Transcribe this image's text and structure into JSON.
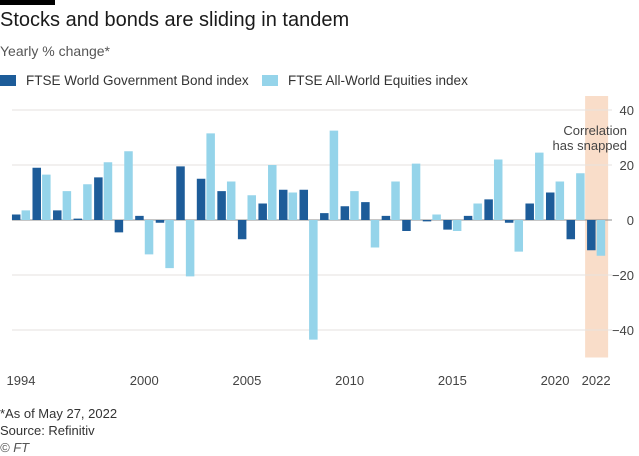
{
  "header": {
    "title": "Stocks and bonds are sliding in tandem",
    "subtitle": "Yearly % change*"
  },
  "legend": {
    "items": [
      {
        "label": "FTSE World Government Bond index",
        "color": "#1d5c99"
      },
      {
        "label": "FTSE All-World Equities index",
        "color": "#95d4ea"
      }
    ]
  },
  "annotation": {
    "line1": "Correlation",
    "line2": "has snapped",
    "color": "#f9ddc9"
  },
  "footer": {
    "footnote": "*As of May 27, 2022",
    "source": "Source: Refinitiv",
    "credit": "© FT"
  },
  "chart_data": {
    "type": "bar",
    "title": "Stocks and bonds are sliding in tandem",
    "ylabel": "Yearly % change",
    "ylim": [
      -50,
      45
    ],
    "yticks": [
      40,
      20,
      0,
      -20,
      -40
    ],
    "x_tick_labels": [
      "1994",
      "2000",
      "2005",
      "2010",
      "2015",
      "2020",
      "2022"
    ],
    "categories": [
      "1994",
      "1995",
      "1996",
      "1997",
      "1998",
      "1999",
      "2000",
      "2001",
      "2002",
      "2003",
      "2004",
      "2005",
      "2006",
      "2007",
      "2008",
      "2009",
      "2010",
      "2011",
      "2012",
      "2013",
      "2014",
      "2015",
      "2016",
      "2017",
      "2018",
      "2019",
      "2020",
      "2021",
      "2022"
    ],
    "highlight_category": "2022",
    "series": [
      {
        "name": "FTSE World Government Bond index",
        "color": "#1d5c99",
        "values": [
          2,
          19,
          3.5,
          0.5,
          15.5,
          -4.5,
          1.5,
          -1,
          19.5,
          15,
          10.5,
          -7,
          6,
          11,
          11,
          2.5,
          5,
          6.5,
          1.5,
          -4,
          -0.5,
          -3.5,
          1.5,
          7.5,
          -1,
          6,
          10,
          -7,
          -11
        ]
      },
      {
        "name": "FTSE All-World Equities index",
        "color": "#95d4ea",
        "values": [
          3.5,
          16.5,
          10.5,
          13,
          21,
          25,
          -12.5,
          -17.5,
          -20.5,
          31.5,
          14,
          9,
          20,
          10,
          -43.5,
          32.5,
          10.5,
          -10,
          14,
          20.5,
          2,
          -4,
          6,
          22,
          -11.5,
          24.5,
          14,
          17,
          -13
        ]
      }
    ]
  }
}
